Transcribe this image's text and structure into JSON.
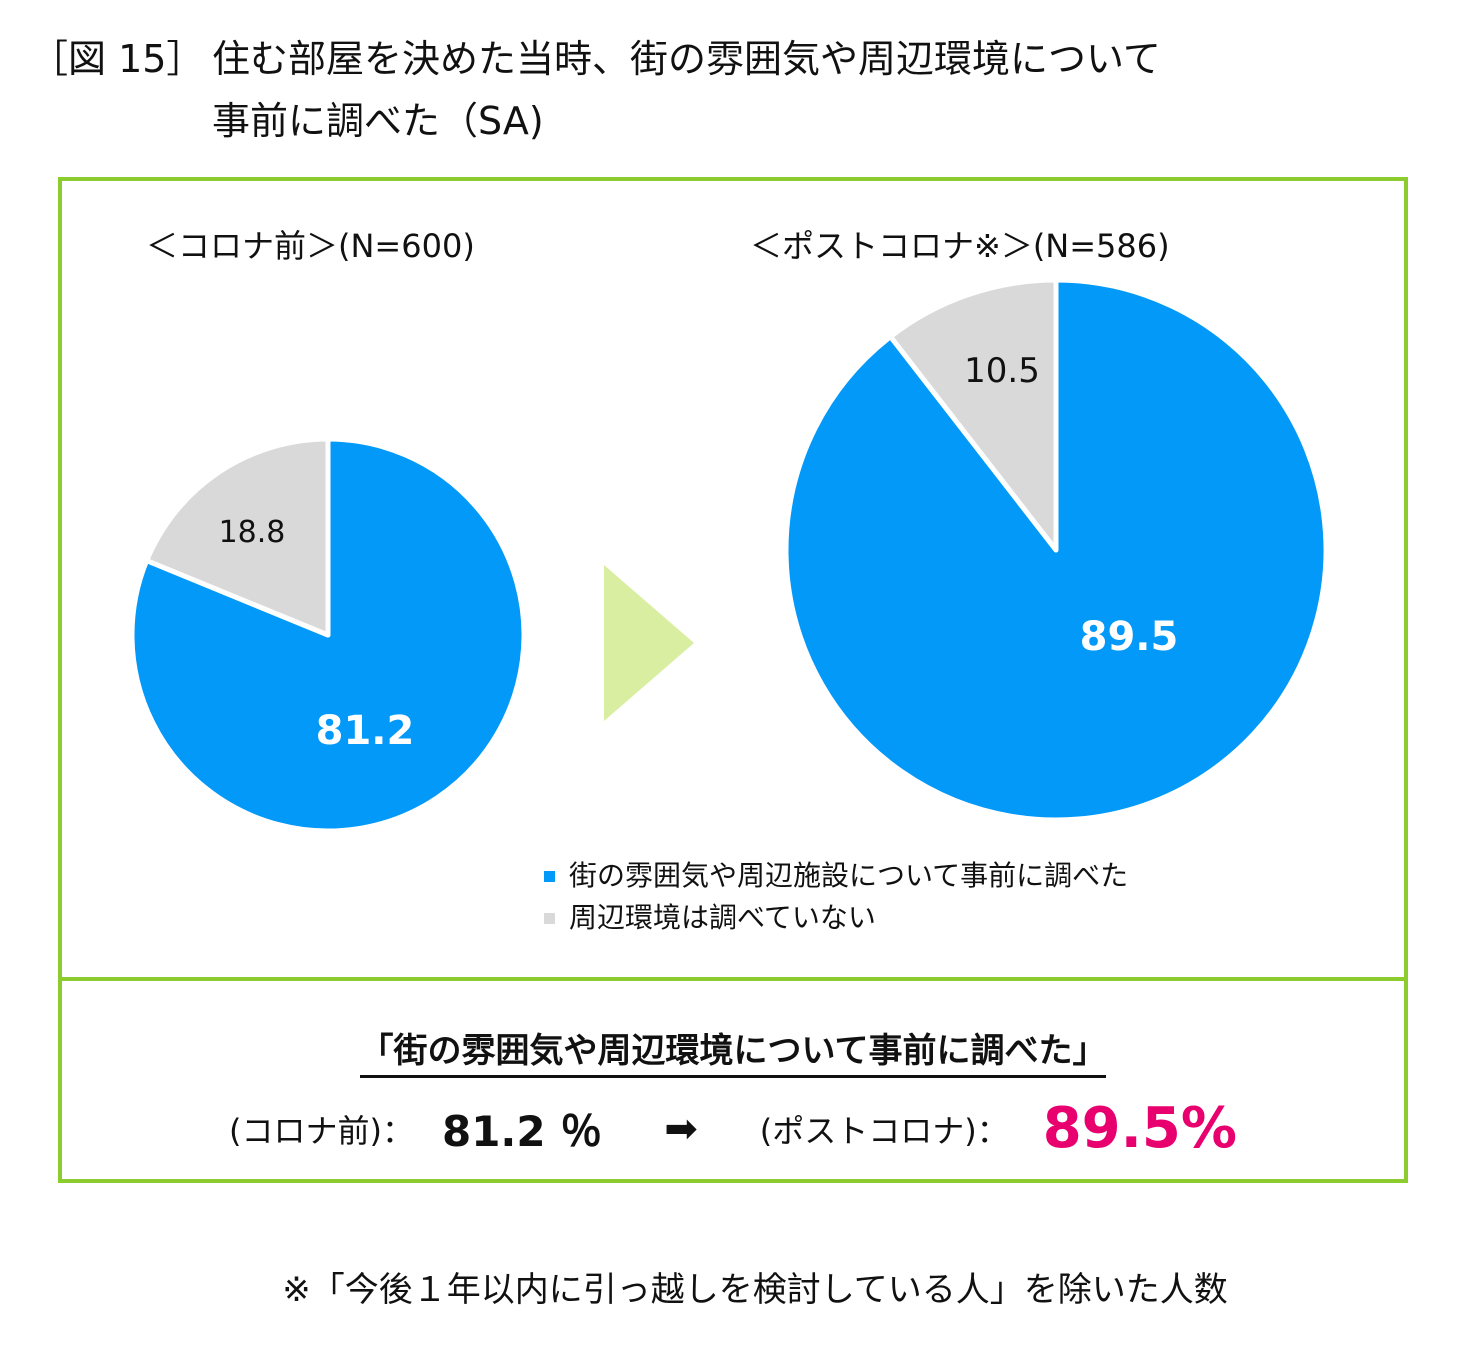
{
  "title": {
    "figure_number": "［図 15］",
    "line1": "住む部屋を決めた当時、街の雰囲気や周辺環境について",
    "line2": "事前に調べた（SA)"
  },
  "chart_data": [
    {
      "type": "pie",
      "title": "＜コロナ前＞(N=600)",
      "categories": [
        "街の雰囲気や周辺施設について事前に調べた",
        "周辺環境は調べていない"
      ],
      "values": [
        81.2,
        18.8
      ],
      "colors": [
        "#0399f8",
        "#d9d9d9"
      ],
      "start": "12 o'clock",
      "direction": "clockwise"
    },
    {
      "type": "pie",
      "title": "＜ポストコロナ※＞(N=586)",
      "categories": [
        "街の雰囲気や周辺施設について事前に調べた",
        "周辺環境は調べていない"
      ],
      "values": [
        89.5,
        10.5
      ],
      "colors": [
        "#0399f8",
        "#d9d9d9"
      ],
      "start": "12 o'clock",
      "direction": "clockwise"
    }
  ],
  "labels": {
    "before": {
      "main": "81.2",
      "other": "18.8"
    },
    "after": {
      "main": "89.5",
      "other": "10.5"
    }
  },
  "legend": [
    {
      "label": "街の雰囲気や周辺施設について事前に調べた",
      "color": "#0399f8"
    },
    {
      "label": "周辺環境は調べていない",
      "color": "#d9d9d9"
    }
  ],
  "arrow_color": "#d9eea0",
  "border_color": "#8dcc2e",
  "summary": {
    "heading": "「街の雰囲気や周辺環境について事前に調べた」",
    "before_label": "(コロナ前)：",
    "before_value": "81.2 ％",
    "arrow": "➡",
    "after_label": "(ポストコロナ)：",
    "after_value": "89.5%",
    "after_color": "#e8006f"
  },
  "note": "※「今後１年以内に引っ越しを検討している人」を除いた人数"
}
